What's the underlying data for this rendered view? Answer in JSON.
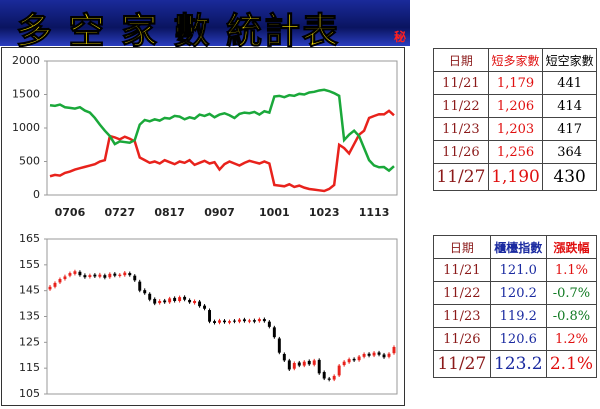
{
  "header": {
    "title": "多 空 家 數 統計表",
    "badge": "秘"
  },
  "chart_data": [
    {
      "type": "line",
      "categories": [
        null,
        null,
        null,
        null,
        "0706",
        null,
        null,
        null,
        null,
        null,
        null,
        null,
        null,
        null,
        "0727",
        null,
        null,
        null,
        null,
        null,
        null,
        null,
        null,
        null,
        "0817",
        null,
        null,
        null,
        null,
        null,
        null,
        null,
        null,
        null,
        "0907",
        null,
        null,
        null,
        null,
        null,
        null,
        null,
        null,
        null,
        null,
        "1001",
        null,
        null,
        null,
        null,
        null,
        null,
        null,
        null,
        null,
        "1023",
        null,
        null,
        null,
        null,
        null,
        null,
        null,
        null,
        null,
        "1113",
        null,
        null,
        null,
        null
      ],
      "series": [
        {
          "color": "#e8221c",
          "values": [
            280,
            300,
            290,
            330,
            350,
            380,
            400,
            420,
            440,
            460,
            500,
            520,
            880,
            860,
            830,
            870,
            840,
            800,
            560,
            520,
            480,
            500,
            470,
            520,
            490,
            460,
            500,
            480,
            520,
            450,
            480,
            510,
            470,
            490,
            380,
            460,
            500,
            470,
            440,
            480,
            510,
            490,
            470,
            500,
            470,
            150,
            140,
            130,
            160,
            120,
            140,
            110,
            90,
            80,
            70,
            60,
            90,
            150,
            750,
            700,
            620,
            760,
            900,
            960,
            1150,
            1179,
            1206,
            1203,
            1256,
            1190
          ]
        },
        {
          "color": "#1aa83a",
          "values": [
            1340,
            1330,
            1350,
            1310,
            1300,
            1290,
            1310,
            1260,
            1230,
            1150,
            1050,
            960,
            880,
            760,
            800,
            790,
            780,
            820,
            1050,
            1120,
            1100,
            1130,
            1110,
            1150,
            1140,
            1180,
            1170,
            1130,
            1160,
            1140,
            1200,
            1180,
            1210,
            1160,
            1200,
            1220,
            1190,
            1150,
            1210,
            1230,
            1220,
            1240,
            1200,
            1250,
            1230,
            1470,
            1480,
            1460,
            1490,
            1480,
            1510,
            1500,
            1530,
            1540,
            1560,
            1570,
            1550,
            1520,
            1480,
            820,
            900,
            960,
            880,
            700,
            520,
            441,
            414,
            417,
            364,
            430
          ]
        }
      ],
      "ylim": [
        0,
        2000
      ],
      "yticks": [
        0,
        500,
        1000,
        1500,
        2000
      ]
    },
    {
      "type": "candlestick",
      "up_color": "#e8221c",
      "down_color": "#000000",
      "open": [
        145.5,
        146.5,
        148.2,
        149.5,
        150.8,
        151.5,
        152.3,
        151.0,
        150.3,
        151.2,
        150.4,
        151.0,
        150.2,
        151.6,
        150.7,
        151.0,
        151.8,
        150.8,
        148.5,
        145.2,
        143.8,
        141.8,
        140.2,
        141.2,
        140.5,
        142.2,
        141.0,
        142.6,
        141.4,
        140.2,
        140.8,
        139.2,
        137.5,
        133.2,
        132.6,
        133.4,
        132.6,
        133.4,
        133.0,
        133.9,
        133.0,
        133.6,
        133.2,
        134.0,
        133.0,
        130.8,
        126.5,
        120.5,
        118.0,
        114.8,
        117.2,
        116.0,
        117.8,
        116.3,
        118.2,
        113.5,
        111.0,
        110.6,
        112.2,
        116.2,
        117.3,
        118.6,
        118.1,
        119.4,
        120.6,
        119.9,
        121.1,
        120.3,
        119.4,
        120.8
      ],
      "close": [
        146.5,
        148.0,
        149.5,
        150.5,
        151.8,
        152.5,
        151.0,
        150.2,
        151.0,
        150.5,
        151.2,
        150.0,
        151.5,
        150.8,
        151.2,
        152.0,
        151.0,
        149.0,
        145.0,
        144.0,
        141.5,
        140.0,
        141.0,
        140.5,
        142.0,
        141.0,
        142.5,
        141.5,
        140.5,
        141.0,
        139.0,
        138.0,
        133.0,
        132.5,
        133.5,
        132.8,
        133.2,
        133.0,
        133.8,
        133.2,
        133.5,
        133.0,
        134.0,
        133.2,
        131.0,
        127.0,
        121.0,
        118.0,
        114.5,
        117.0,
        116.0,
        117.5,
        116.5,
        118.0,
        113.0,
        111.0,
        110.5,
        112.0,
        116.0,
        117.5,
        118.5,
        118.0,
        119.5,
        120.5,
        119.8,
        121.0,
        120.2,
        119.2,
        120.6,
        123.2
      ],
      "high": [
        147.2,
        148.6,
        150.1,
        151.2,
        152.4,
        153.1,
        152.9,
        151.7,
        151.6,
        151.8,
        151.9,
        151.6,
        152.1,
        152.2,
        151.8,
        152.6,
        152.4,
        151.4,
        149.2,
        145.9,
        144.4,
        142.4,
        141.7,
        141.8,
        142.6,
        142.8,
        143.1,
        143.2,
        142.0,
        141.6,
        141.4,
        139.8,
        138.1,
        133.8,
        134.1,
        134.0,
        133.8,
        134.0,
        134.4,
        134.5,
        134.1,
        134.2,
        134.6,
        134.6,
        133.6,
        131.4,
        127.1,
        121.1,
        118.6,
        117.6,
        117.8,
        118.1,
        118.4,
        118.6,
        118.8,
        114.1,
        111.6,
        112.6,
        116.6,
        118.1,
        119.1,
        119.2,
        120.1,
        121.1,
        121.2,
        121.6,
        121.7,
        120.9,
        121.2,
        123.8
      ],
      "low": [
        144.9,
        145.9,
        147.6,
        148.9,
        150.2,
        150.9,
        150.4,
        149.6,
        149.7,
        149.9,
        149.8,
        149.4,
        149.6,
        150.2,
        150.1,
        150.4,
        150.4,
        148.4,
        144.4,
        143.4,
        140.9,
        139.4,
        139.6,
        139.9,
        139.9,
        140.4,
        140.4,
        140.9,
        139.9,
        139.6,
        138.4,
        137.4,
        132.4,
        131.9,
        132.0,
        132.2,
        132.0,
        132.4,
        132.4,
        132.6,
        132.4,
        132.4,
        132.6,
        132.6,
        130.4,
        126.4,
        120.4,
        117.4,
        113.9,
        114.2,
        115.4,
        115.4,
        115.9,
        115.7,
        112.4,
        110.4,
        109.9,
        110.0,
        111.6,
        115.6,
        116.7,
        117.4,
        117.5,
        118.8,
        119.2,
        119.3,
        119.6,
        118.6,
        118.8,
        120.2
      ],
      "ylim": [
        105,
        165
      ],
      "yticks": [
        105,
        115,
        125,
        135,
        145,
        155,
        165
      ]
    }
  ],
  "tables": [
    {
      "header": [
        "日期",
        "短多家數",
        "短空家數"
      ],
      "rows": [
        [
          "11/21",
          "1,179",
          "441"
        ],
        [
          "11/22",
          "1,206",
          "414"
        ],
        [
          "11/23",
          "1,203",
          "417"
        ],
        [
          "11/26",
          "1,256",
          "364"
        ],
        [
          "11/27",
          "1,190",
          "430"
        ]
      ]
    },
    {
      "header": [
        "日期",
        "櫃檯指數",
        "漲跌幅"
      ],
      "rows": [
        [
          "11/21",
          "121.0",
          "1.1%"
        ],
        [
          "11/22",
          "120.2",
          "-0.7%"
        ],
        [
          "11/23",
          "119.2",
          "-0.8%"
        ],
        [
          "11/26",
          "120.6",
          "1.2%"
        ],
        [
          "11/27",
          "123.2",
          "2.1%"
        ]
      ]
    }
  ]
}
